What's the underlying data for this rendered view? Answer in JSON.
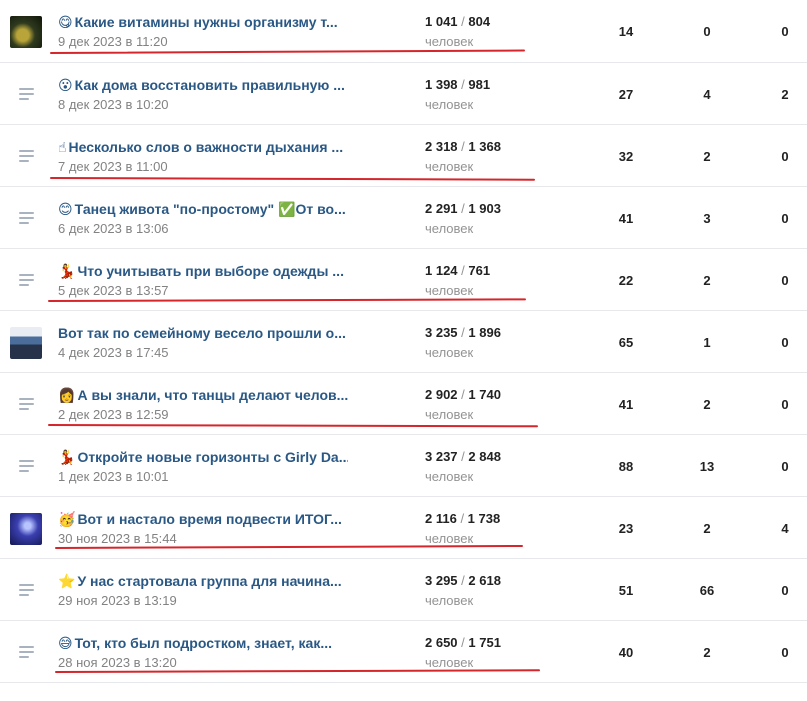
{
  "unit_label": "человек",
  "rows": [
    {
      "icon": "emoji-smile-savoring",
      "glyph": "😋",
      "thumb": "dark",
      "title": "Какие витамины нужны организму т...",
      "date": "9 дек 2023 в 11:20",
      "reach_total": "1 041",
      "reach_subs": "804",
      "c1": "14",
      "c2": "0",
      "c3": "0",
      "marked": true
    },
    {
      "icon": "emoji-astonished",
      "glyph": "😮",
      "thumb": "",
      "title": "Как дома восстановить правильную ...",
      "date": "8 дек 2023 в 10:20",
      "reach_total": "1 398",
      "reach_subs": "981",
      "c1": "27",
      "c2": "4",
      "c3": "2",
      "marked": false
    },
    {
      "icon": "emoji-pointing-finger",
      "glyph": "☝",
      "thumb": "",
      "title": "Несколько слов о важности дыхания ...",
      "date": "7 дек 2023 в 11:00",
      "reach_total": "2 318",
      "reach_subs": "1 368",
      "c1": "32",
      "c2": "2",
      "c3": "0",
      "marked": true
    },
    {
      "icon": "emoji-grin",
      "glyph": "😊",
      "thumb": "",
      "title": "Танец живота \"по-простому\" ✅От во...",
      "date": "6 дек 2023 в 13:06",
      "reach_total": "2 291",
      "reach_subs": "1 903",
      "c1": "41",
      "c2": "3",
      "c3": "0",
      "marked": false
    },
    {
      "icon": "emoji-dancer",
      "glyph": "💃",
      "thumb": "",
      "title": "Что учитывать при выборе одежды ...",
      "date": "5 дек 2023 в 13:57",
      "reach_total": "1 124",
      "reach_subs": "761",
      "c1": "22",
      "c2": "2",
      "c3": "0",
      "marked": true
    },
    {
      "icon": "",
      "glyph": "",
      "thumb": "hall",
      "title": "Вот так по семейному весело прошли о...",
      "date": "4 дек 2023 в 17:45",
      "reach_total": "3 235",
      "reach_subs": "1 896",
      "c1": "65",
      "c2": "1",
      "c3": "0",
      "marked": false
    },
    {
      "icon": "emoji-student",
      "glyph": "👩",
      "thumb": "",
      "title": "А вы знали, что танцы делают челов...",
      "date": "2 дек 2023 в 12:59",
      "reach_total": "2 902",
      "reach_subs": "1 740",
      "c1": "41",
      "c2": "2",
      "c3": "0",
      "marked": true
    },
    {
      "icon": "emoji-dancer",
      "glyph": "💃",
      "thumb": "",
      "title": "Откройте новые горизонты с Girly Da...",
      "date": "1 дек 2023 в 10:01",
      "reach_total": "3 237",
      "reach_subs": "2 848",
      "c1": "88",
      "c2": "13",
      "c3": "0",
      "marked": false
    },
    {
      "icon": "emoji-party-face",
      "glyph": "🥳",
      "thumb": "stage",
      "title": "Вот и настало время подвести ИТОГ...",
      "date": "30 ноя 2023 в 15:44",
      "reach_total": "2 116",
      "reach_subs": "1 738",
      "c1": "23",
      "c2": "2",
      "c3": "4",
      "marked": true
    },
    {
      "icon": "emoji-star",
      "glyph": "⭐",
      "thumb": "",
      "title": "У нас стартовала группа для начина...",
      "date": "29 ноя 2023 в 13:19",
      "reach_total": "3 295",
      "reach_subs": "2 618",
      "c1": "51",
      "c2": "66",
      "c3": "0",
      "marked": false
    },
    {
      "icon": "emoji-sweat-smile",
      "glyph": "😅",
      "thumb": "",
      "title": "Тот, кто был подростком, знает, как...",
      "date": "28 ноя 2023 в 13:20",
      "reach_total": "2 650",
      "reach_subs": "1 751",
      "c1": "40",
      "c2": "2",
      "c3": "0",
      "marked": true
    }
  ],
  "highlight_color": "#d5262b"
}
